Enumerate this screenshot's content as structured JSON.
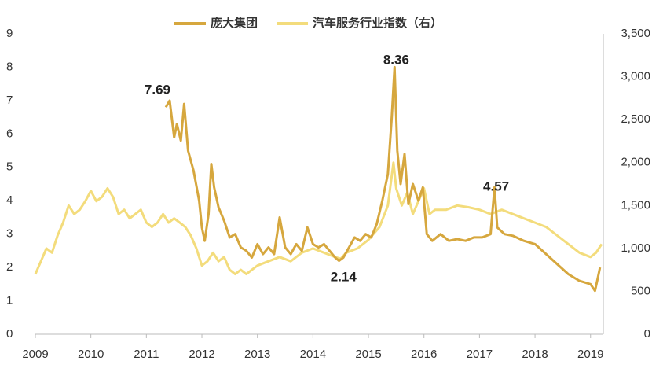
{
  "chart_data": {
    "type": "line",
    "xlim": [
      2009,
      2019.23
    ],
    "xticks": [
      2009,
      2010,
      2011,
      2012,
      2013,
      2014,
      2015,
      2016,
      2017,
      2018,
      2019
    ],
    "ylim": [
      0,
      9
    ],
    "yticks": [
      0,
      1,
      2,
      3,
      4,
      5,
      6,
      7,
      8,
      9
    ],
    "y2lim": [
      0,
      3500
    ],
    "y2ticks": [
      0,
      500,
      {
        "value": 1000,
        "label": "1,000"
      },
      {
        "value": 1500,
        "label": "1,500"
      },
      {
        "value": 2000,
        "label": "2,000"
      },
      {
        "value": 2500,
        "label": "2,500"
      },
      {
        "value": 3000,
        "label": "3,000"
      },
      {
        "value": 3500,
        "label": "3,500"
      }
    ],
    "legend": "top",
    "series": [
      {
        "name": "庞大集团",
        "color": "#d6a73e",
        "x": [
          2011.35,
          2011.42,
          2011.5,
          2011.55,
          2011.62,
          2011.68,
          2011.75,
          2011.85,
          2011.95,
          2012.0,
          2012.05,
          2012.12,
          2012.17,
          2012.22,
          2012.3,
          2012.4,
          2012.5,
          2012.6,
          2012.7,
          2012.8,
          2012.9,
          2013.0,
          2013.1,
          2013.2,
          2013.3,
          2013.4,
          2013.5,
          2013.6,
          2013.7,
          2013.8,
          2013.9,
          2014.0,
          2014.1,
          2014.2,
          2014.3,
          2014.4,
          2014.47,
          2014.55,
          2014.65,
          2014.75,
          2014.85,
          2014.95,
          2015.05,
          2015.15,
          2015.25,
          2015.35,
          2015.42,
          2015.47,
          2015.52,
          2015.58,
          2015.65,
          2015.72,
          2015.8,
          2015.9,
          2015.98,
          2016.05,
          2016.15,
          2016.3,
          2016.45,
          2016.6,
          2016.75,
          2016.9,
          2017.05,
          2017.2,
          2017.27,
          2017.32,
          2017.45,
          2017.6,
          2017.8,
          2018.0,
          2018.2,
          2018.4,
          2018.6,
          2018.8,
          2019.0,
          2019.08,
          2019.12,
          2019.17
        ],
        "values": [
          6.8,
          7.0,
          5.9,
          6.3,
          5.8,
          6.9,
          5.5,
          4.9,
          4.0,
          3.2,
          2.8,
          3.6,
          5.1,
          4.4,
          3.8,
          3.4,
          2.9,
          3.0,
          2.6,
          2.5,
          2.3,
          2.7,
          2.4,
          2.6,
          2.4,
          3.5,
          2.6,
          2.4,
          2.7,
          2.5,
          3.2,
          2.7,
          2.6,
          2.7,
          2.5,
          2.3,
          2.2,
          2.3,
          2.6,
          2.9,
          2.8,
          3.0,
          2.9,
          3.3,
          4.0,
          4.8,
          6.5,
          8.0,
          5.5,
          4.5,
          5.4,
          3.9,
          4.5,
          4.0,
          4.4,
          3.0,
          2.8,
          3.0,
          2.8,
          2.85,
          2.8,
          2.9,
          2.9,
          3.0,
          4.4,
          3.2,
          3.0,
          2.95,
          2.8,
          2.7,
          2.4,
          2.1,
          1.8,
          1.6,
          1.5,
          1.3,
          1.6,
          2.0
        ]
      },
      {
        "name": "汽车服务行业指数（右）",
        "color": "#f3dc7c",
        "axis": "y2",
        "x": [
          2009.0,
          2009.1,
          2009.2,
          2009.3,
          2009.4,
          2009.5,
          2009.6,
          2009.7,
          2009.8,
          2009.9,
          2010.0,
          2010.1,
          2010.2,
          2010.3,
          2010.4,
          2010.5,
          2010.6,
          2010.7,
          2010.8,
          2010.9,
          2011.0,
          2011.1,
          2011.2,
          2011.3,
          2011.4,
          2011.5,
          2011.6,
          2011.7,
          2011.8,
          2011.9,
          2012.0,
          2012.1,
          2012.2,
          2012.3,
          2012.4,
          2012.5,
          2012.6,
          2012.7,
          2012.8,
          2012.9,
          2013.0,
          2013.2,
          2013.4,
          2013.6,
          2013.8,
          2014.0,
          2014.2,
          2014.4,
          2014.5,
          2014.6,
          2014.8,
          2015.0,
          2015.2,
          2015.35,
          2015.45,
          2015.5,
          2015.6,
          2015.7,
          2015.8,
          2015.9,
          2016.0,
          2016.1,
          2016.2,
          2016.4,
          2016.6,
          2016.8,
          2017.0,
          2017.2,
          2017.4,
          2017.6,
          2017.8,
          2018.0,
          2018.2,
          2018.4,
          2018.6,
          2018.8,
          2019.0,
          2019.1,
          2019.2
        ],
        "values": [
          700,
          850,
          1000,
          950,
          1150,
          1300,
          1500,
          1400,
          1450,
          1550,
          1670,
          1550,
          1600,
          1700,
          1600,
          1400,
          1450,
          1350,
          1400,
          1450,
          1300,
          1250,
          1300,
          1400,
          1300,
          1350,
          1300,
          1250,
          1150,
          1000,
          800,
          850,
          950,
          850,
          900,
          750,
          700,
          750,
          700,
          750,
          800,
          850,
          900,
          850,
          950,
          1000,
          950,
          900,
          880,
          950,
          1000,
          1100,
          1250,
          1500,
          2000,
          1700,
          1500,
          1650,
          1400,
          1550,
          1700,
          1400,
          1450,
          1450,
          1500,
          1480,
          1450,
          1400,
          1450,
          1400,
          1350,
          1300,
          1250,
          1150,
          1050,
          950,
          900,
          950,
          1050
        ]
      }
    ],
    "annotations": [
      {
        "text": "7.69",
        "x": 2011.2,
        "y": 7.3
      },
      {
        "text": "8.36",
        "x": 2015.5,
        "y": 8.2
      },
      {
        "text": "2.14",
        "x": 2014.55,
        "y": 1.7
      },
      {
        "text": "4.57",
        "x": 2017.3,
        "y": 4.4
      }
    ]
  }
}
